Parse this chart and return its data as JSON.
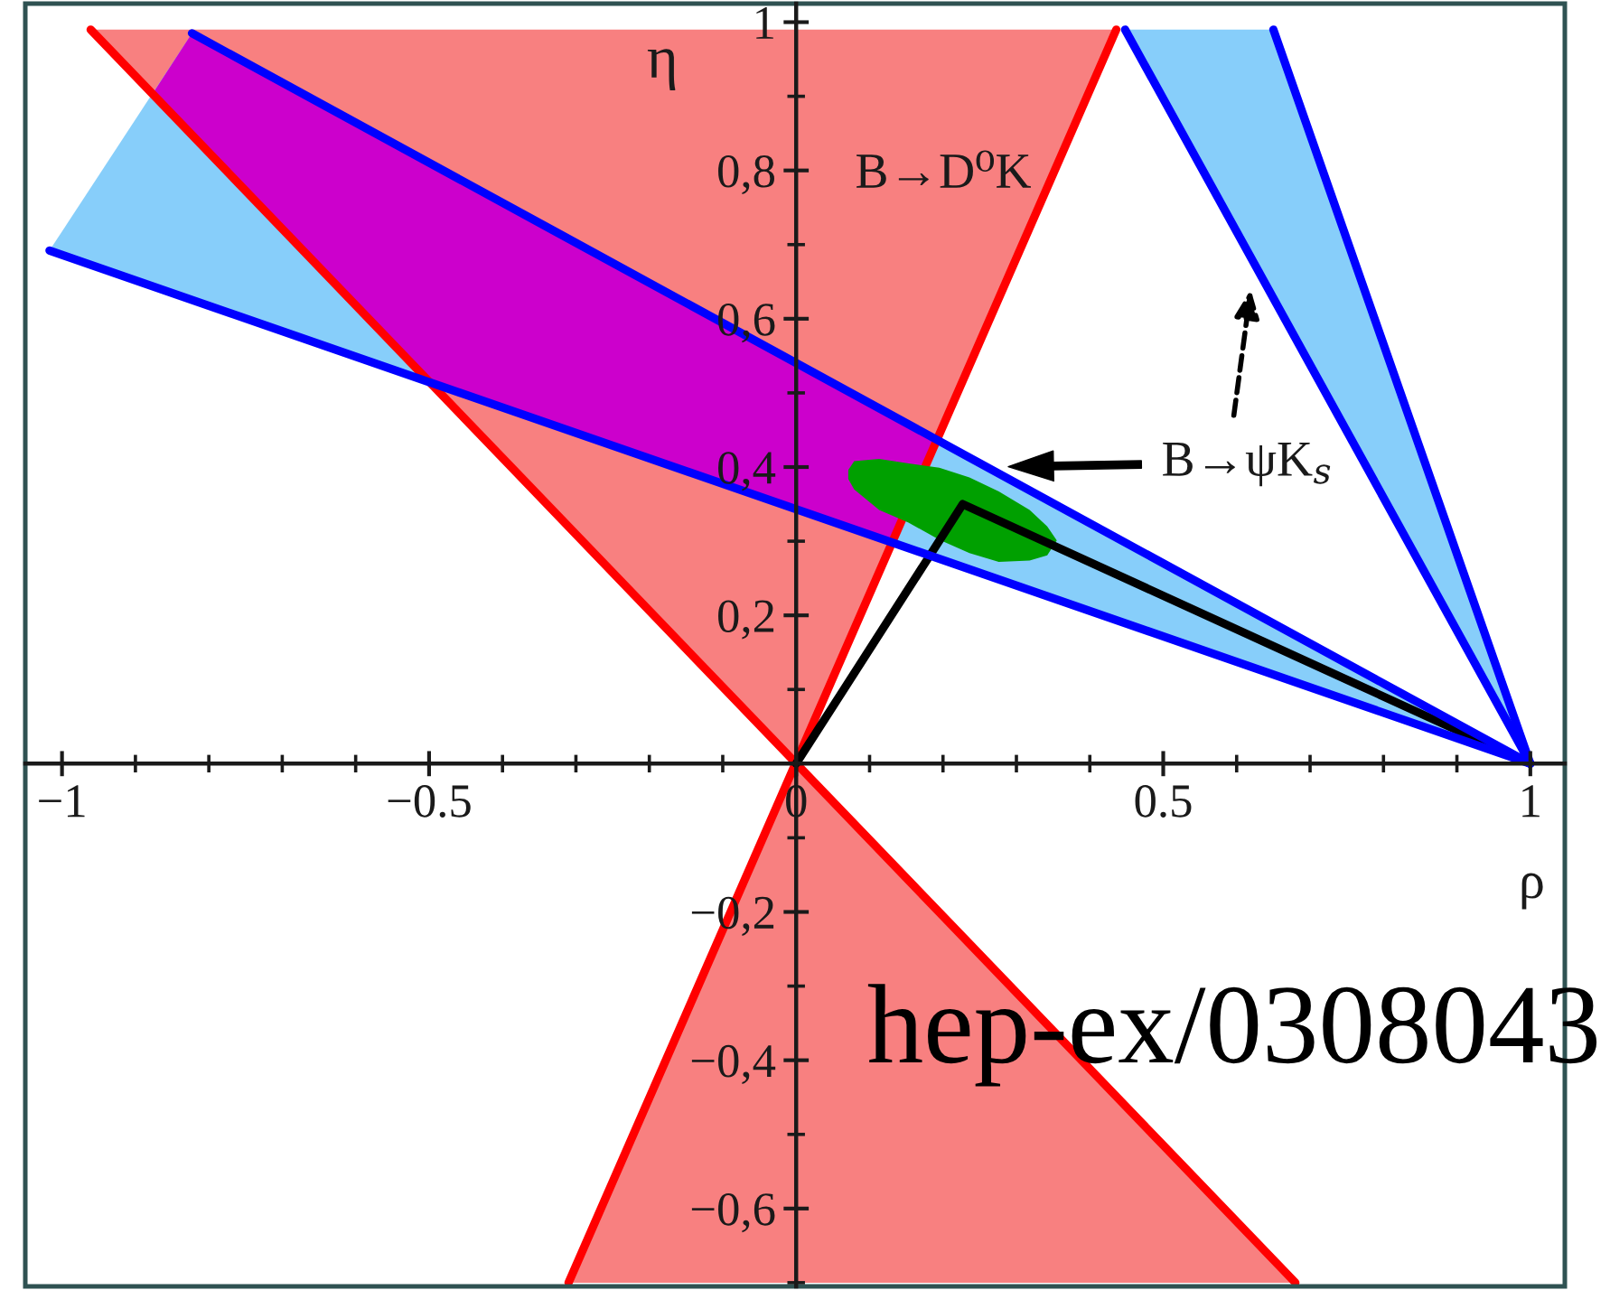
{
  "chart_data": {
    "type": "area",
    "xlabel": "ρ",
    "ylabel": "η",
    "xlim": [
      -1.05,
      1.047
    ],
    "ylim": [
      -0.705,
      1.025
    ],
    "xticks": [
      {
        "value": -1,
        "label": "−1"
      },
      {
        "value": -0.9,
        "label": null
      },
      {
        "value": -0.8,
        "label": null
      },
      {
        "value": -0.7,
        "label": null
      },
      {
        "value": -0.6,
        "label": null
      },
      {
        "value": -0.5,
        "label": "−0.5"
      },
      {
        "value": -0.4,
        "label": null
      },
      {
        "value": -0.3,
        "label": null
      },
      {
        "value": -0.2,
        "label": null
      },
      {
        "value": -0.1,
        "label": null
      },
      0,
      {
        "value": 0.1,
        "label": null
      },
      {
        "value": 0.2,
        "label": null
      },
      {
        "value": 0.3,
        "label": null
      },
      {
        "value": 0.4,
        "label": null
      },
      0.5,
      {
        "value": 0.6,
        "label": null
      },
      {
        "value": 0.7,
        "label": null
      },
      {
        "value": 0.8,
        "label": null
      },
      {
        "value": 0.9,
        "label": null
      },
      1
    ],
    "yticks": [
      {
        "value": -0.7,
        "label": null
      },
      {
        "value": -0.6,
        "label": "−0,6"
      },
      {
        "value": -0.5,
        "label": null
      },
      {
        "value": -0.4,
        "label": "−0,4"
      },
      {
        "value": -0.3,
        "label": null
      },
      {
        "value": -0.2,
        "label": "−0,2"
      },
      {
        "value": -0.1,
        "label": null
      },
      {
        "value": 0.1,
        "label": null
      },
      {
        "value": 0.2,
        "label": "0,2"
      },
      {
        "value": 0.3,
        "label": null
      },
      {
        "value": 0.4,
        "label": "0,4"
      },
      {
        "value": 0.5,
        "label": null
      },
      {
        "value": 0.6,
        "label": "0,6"
      },
      {
        "value": 0.7,
        "label": null
      },
      {
        "value": 0.8,
        "label": "0,8"
      },
      {
        "value": 0.9,
        "label": null
      },
      1
    ],
    "series": [
      {
        "color": "#f88080",
        "x": [
          -0.961,
          0,
          0.436
        ],
        "values": [
          null,
          null,
          null
        ],
        "upper": [
          0.99,
          0.99,
          0.99
        ],
        "lower": [
          0.99,
          0,
          0.99
        ]
      },
      {
        "color": "#f88080",
        "x": [
          -0.31,
          0,
          0.68
        ],
        "values": [
          null,
          null,
          null
        ],
        "upper": [
          -0.7,
          0,
          -0.7
        ],
        "lower": [
          -0.7,
          -0.7,
          -0.7
        ]
      },
      {
        "color": "#87cefa",
        "x": [
          -1.017,
          -0.823,
          1
        ],
        "values": [
          null,
          null,
          null
        ],
        "upper": [
          0.692,
          0.985,
          0
        ],
        "lower": [
          0.692,
          0.625,
          0
        ]
      },
      {
        "color": "#87cefa",
        "x": [
          0.448,
          0.65,
          1
        ],
        "values": [
          null,
          null,
          null
        ],
        "upper": [
          0.99,
          0.99,
          0
        ],
        "lower": [
          0.99,
          0.628,
          0
        ]
      },
      {
        "color": "#cc00cc",
        "x": [
          -0.877,
          -0.823,
          -0.499,
          0.131,
          0.192
        ],
        "values": [
          null,
          null,
          null,
          null,
          null
        ],
        "upper": [
          0.903,
          0.985,
          0.81,
          0.47,
          0.437
        ],
        "lower": [
          0.903,
          0.848,
          0.514,
          0.298,
          0.437
        ]
      },
      {
        "type": "line",
        "color": "#ff0000",
        "x": [
          -0.961,
          0.68
        ],
        "values": [
          0.99,
          -0.7
        ]
      },
      {
        "type": "line",
        "color": "#ff0000",
        "x": [
          -0.31,
          0.436
        ],
        "values": [
          -0.7,
          0.99
        ]
      },
      {
        "color": "#00a000",
        "x": [
          0.071,
          0.079,
          0.113,
          0.153,
          0.195,
          0.236,
          0.276,
          0.318,
          0.342,
          0.355
        ],
        "values": [
          null,
          null,
          null,
          null,
          null,
          null,
          null,
          null,
          null,
          null
        ],
        "upper": [
          0.396,
          0.408,
          0.411,
          0.405,
          0.399,
          0.386,
          0.367,
          0.342,
          0.32,
          0.301
        ],
        "lower": [
          0.384,
          0.37,
          0.342,
          0.325,
          0.302,
          0.284,
          0.272,
          0.274,
          0.281,
          0.301
        ]
      },
      {
        "type": "line",
        "color": "#000000",
        "x": [
          0,
          0.227,
          1
        ],
        "values": [
          0,
          0.35,
          0
        ]
      },
      {
        "type": "line",
        "color": "#0000ff",
        "x": [
          -1.017,
          1
        ],
        "values": [
          0.692,
          0
        ]
      },
      {
        "type": "line",
        "color": "#0000ff",
        "x": [
          -0.823,
          1
        ],
        "values": [
          0.985,
          0
        ]
      },
      {
        "type": "line",
        "color": "#0000ff",
        "x": [
          0.448,
          1
        ],
        "values": [
          0.99,
          0
        ]
      },
      {
        "type": "line",
        "color": "#0000ff",
        "x": [
          0.65,
          1
        ],
        "values": [
          0.99,
          0
        ]
      }
    ],
    "annotations": [
      "B→D⁰K",
      "B→ψK$_{s}$",
      "hep-ex/0308043"
    ]
  }
}
